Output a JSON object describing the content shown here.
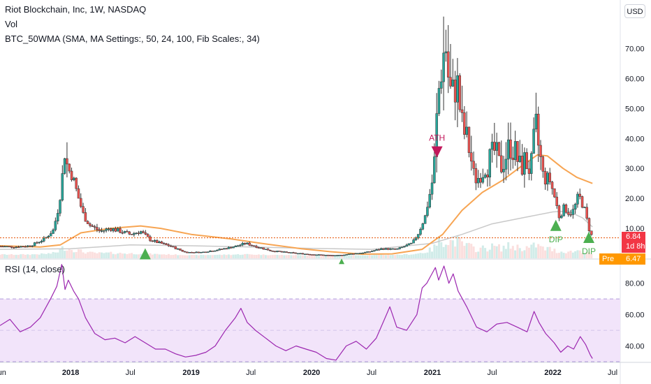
{
  "header": {
    "title": "Riot Blockchain, Inc, 1W, NASDAQ",
    "vol_label": "Vol",
    "indicator_label": "BTC_50WMA (SMA, MA Settings:, 50, 24, 100, Fib Scales:, 34)",
    "rsi_label": "RSI (14, close)",
    "currency_button": "USD"
  },
  "price_tags": {
    "last": "6.84",
    "countdown": "1d 8h",
    "pre_label": "Pre",
    "pre_value": "6.47"
  },
  "colors": {
    "up": "#26a69a",
    "down": "#ef5350",
    "ma_orange": "#f7a553",
    "ma_gray": "#c9c9c9",
    "rsi_line": "#9c27b0",
    "rsi_band": "#f2e4fa",
    "last_price": "#f23645",
    "pre_price": "#ff9800",
    "dotted_line": "#e65100",
    "ath_marker": "#c2185b",
    "dip_marker": "#4caf50"
  },
  "chart_data": [
    {
      "type": "candlestick",
      "ylim": [
        0,
        82
      ],
      "yticks": [
        10,
        20,
        30,
        40,
        50,
        60,
        70
      ],
      "ytick_labels": [
        "10.00",
        "20.00",
        "30.00",
        "40.00",
        "50.00",
        "60.00",
        "70.00"
      ],
      "x_start": "2017-06-01",
      "x_end": "2022-07-20",
      "xtick_labels": [
        {
          "label": "Jun",
          "date": "2017-06-01",
          "bold": false
        },
        {
          "label": "2018",
          "date": "2018-01-01",
          "bold": true
        },
        {
          "label": "Jul",
          "date": "2018-07-01",
          "bold": false
        },
        {
          "label": "2019",
          "date": "2019-01-01",
          "bold": true
        },
        {
          "label": "Jul",
          "date": "2019-07-01",
          "bold": false
        },
        {
          "label": "2020",
          "date": "2020-01-01",
          "bold": true
        },
        {
          "label": "Jul",
          "date": "2020-07-01",
          "bold": false
        },
        {
          "label": "2021",
          "date": "2021-01-01",
          "bold": true
        },
        {
          "label": "Jul",
          "date": "2021-07-01",
          "bold": false
        },
        {
          "label": "2022",
          "date": "2022-01-01",
          "bold": true
        },
        {
          "label": "Jul",
          "date": "2022-07-01",
          "bold": false
        }
      ],
      "close_points": [
        [
          "2017-06-01",
          4.0
        ],
        [
          "2017-07-15",
          3.8
        ],
        [
          "2017-09-01",
          4.2
        ],
        [
          "2017-10-15",
          6.5
        ],
        [
          "2017-11-10",
          9.5
        ],
        [
          "2017-11-25",
          17
        ],
        [
          "2017-12-05",
          25
        ],
        [
          "2017-12-15",
          38
        ],
        [
          "2017-12-22",
          30
        ],
        [
          "2018-01-05",
          28
        ],
        [
          "2018-01-20",
          22
        ],
        [
          "2018-02-10",
          14
        ],
        [
          "2018-03-01",
          11
        ],
        [
          "2018-04-01",
          9
        ],
        [
          "2018-05-01",
          10
        ],
        [
          "2018-06-01",
          9
        ],
        [
          "2018-07-01",
          8
        ],
        [
          "2018-08-01",
          9
        ],
        [
          "2018-09-01",
          6
        ],
        [
          "2018-10-01",
          5
        ],
        [
          "2018-11-01",
          4
        ],
        [
          "2018-12-15",
          2
        ],
        [
          "2019-02-01",
          2
        ],
        [
          "2019-04-01",
          3
        ],
        [
          "2019-05-15",
          4
        ],
        [
          "2019-06-15",
          5
        ],
        [
          "2019-07-15",
          4
        ],
        [
          "2019-09-01",
          2.5
        ],
        [
          "2019-11-01",
          1.8
        ],
        [
          "2020-01-01",
          1.3
        ],
        [
          "2020-03-15",
          0.9
        ],
        [
          "2020-05-01",
          1.5
        ],
        [
          "2020-06-15",
          2.0
        ],
        [
          "2020-08-01",
          3.2
        ],
        [
          "2020-09-15",
          3.0
        ],
        [
          "2020-11-01",
          5.0
        ],
        [
          "2020-11-20",
          8.5
        ],
        [
          "2020-12-10",
          14
        ],
        [
          "2020-12-25",
          22
        ],
        [
          "2021-01-05",
          28
        ],
        [
          "2021-01-15",
          48
        ],
        [
          "2021-01-25",
          62
        ],
        [
          "2021-02-10",
          72
        ],
        [
          "2021-02-20",
          58
        ],
        [
          "2021-03-01",
          53
        ],
        [
          "2021-03-15",
          60
        ],
        [
          "2021-04-01",
          44
        ],
        [
          "2021-04-20",
          38
        ],
        [
          "2021-05-10",
          26
        ],
        [
          "2021-06-01",
          28
        ],
        [
          "2021-06-20",
          32
        ],
        [
          "2021-07-10",
          36
        ],
        [
          "2021-07-25",
          30
        ],
        [
          "2021-08-10",
          34
        ],
        [
          "2021-08-25",
          38
        ],
        [
          "2021-09-10",
          35
        ],
        [
          "2021-09-25",
          30
        ],
        [
          "2021-10-10",
          33
        ],
        [
          "2021-10-25",
          28
        ],
        [
          "2021-11-10",
          44
        ],
        [
          "2021-11-20",
          36
        ],
        [
          "2021-12-05",
          26
        ],
        [
          "2021-12-20",
          27
        ],
        [
          "2022-01-05",
          21
        ],
        [
          "2022-01-20",
          14
        ],
        [
          "2022-02-05",
          17
        ],
        [
          "2022-02-20",
          15
        ],
        [
          "2022-03-05",
          16
        ],
        [
          "2022-03-20",
          21
        ],
        [
          "2022-04-05",
          17
        ],
        [
          "2022-04-20",
          10
        ],
        [
          "2022-05-01",
          6.84
        ]
      ],
      "overlay_orange": [
        [
          "2017-06-01",
          4.2
        ],
        [
          "2017-10-01",
          3.8
        ],
        [
          "2017-12-01",
          4.5
        ],
        [
          "2018-02-01",
          8.5
        ],
        [
          "2018-05-01",
          10.0
        ],
        [
          "2018-08-01",
          10.8
        ],
        [
          "2018-10-01",
          10.0
        ],
        [
          "2019-01-01",
          8.0
        ],
        [
          "2019-05-01",
          6.5
        ],
        [
          "2019-08-01",
          5.0
        ],
        [
          "2019-12-01",
          3.2
        ],
        [
          "2020-03-01",
          2.2
        ],
        [
          "2020-06-01",
          1.4
        ],
        [
          "2020-09-01",
          1.5
        ],
        [
          "2020-12-01",
          3.0
        ],
        [
          "2021-02-01",
          8.0
        ],
        [
          "2021-04-01",
          16.0
        ],
        [
          "2021-06-01",
          22.0
        ],
        [
          "2021-08-01",
          26.0
        ],
        [
          "2021-10-01",
          31.0
        ],
        [
          "2021-11-15",
          34.5
        ],
        [
          "2021-12-15",
          34.2
        ],
        [
          "2022-02-01",
          30.0
        ],
        [
          "2022-03-15",
          27.0
        ],
        [
          "2022-05-01",
          25.0
        ]
      ],
      "overlay_gray": [
        [
          "2017-06-01",
          3.0
        ],
        [
          "2018-01-01",
          3.2
        ],
        [
          "2018-07-01",
          4.5
        ],
        [
          "2019-01-01",
          4.2
        ],
        [
          "2019-07-01",
          3.8
        ],
        [
          "2020-01-01",
          3.3
        ],
        [
          "2020-07-01",
          3.0
        ],
        [
          "2021-01-01",
          5.0
        ],
        [
          "2021-04-01",
          8.0
        ],
        [
          "2021-07-01",
          11.5
        ],
        [
          "2021-10-01",
          13.5
        ],
        [
          "2022-01-01",
          15.5
        ],
        [
          "2022-02-15",
          15.8
        ],
        [
          "2022-04-01",
          13.5
        ],
        [
          "2022-05-01",
          10.5
        ]
      ],
      "last_price": 6.84,
      "annotations": [
        {
          "text": "ATH",
          "date": "2021-01-15",
          "value": 35.5,
          "kind": "arrow-down",
          "color": "#c2185b"
        },
        {
          "text": "",
          "date": "2018-08-15",
          "value": 1.5,
          "kind": "arrow-up",
          "color": "#4caf50"
        },
        {
          "text": "",
          "date": "2020-04-01",
          "value": -1.0,
          "kind": "arrow-up-small",
          "color": "#4caf50"
        },
        {
          "text": "DIP",
          "date": "2022-01-10",
          "value": 11.0,
          "kind": "arrow-up",
          "color": "#4caf50"
        },
        {
          "text": "DIP",
          "date": "2022-04-20",
          "value": 7.0,
          "kind": "arrow-up",
          "color": "#4caf50"
        }
      ]
    },
    {
      "type": "line",
      "name": "RSI",
      "ylim": [
        30,
        95
      ],
      "yticks": [
        40,
        60,
        80
      ],
      "ytick_labels": [
        "40.00",
        "60.00",
        "80.00"
      ],
      "band": [
        30,
        70
      ],
      "points": [
        [
          "2017-06-01",
          53
        ],
        [
          "2017-07-01",
          57
        ],
        [
          "2017-08-01",
          49
        ],
        [
          "2017-09-01",
          52
        ],
        [
          "2017-10-01",
          58
        ],
        [
          "2017-11-01",
          70
        ],
        [
          "2017-11-20",
          78
        ],
        [
          "2017-12-05",
          92
        ],
        [
          "2017-12-15",
          76
        ],
        [
          "2017-12-25",
          82
        ],
        [
          "2018-01-10",
          75
        ],
        [
          "2018-01-25",
          70
        ],
        [
          "2018-02-15",
          58
        ],
        [
          "2018-03-15",
          48
        ],
        [
          "2018-04-15",
          44
        ],
        [
          "2018-05-15",
          45
        ],
        [
          "2018-06-15",
          42
        ],
        [
          "2018-07-15",
          46
        ],
        [
          "2018-08-15",
          42
        ],
        [
          "2018-09-15",
          38
        ],
        [
          "2018-10-15",
          38
        ],
        [
          "2018-11-15",
          35
        ],
        [
          "2018-12-15",
          33
        ],
        [
          "2019-01-15",
          34
        ],
        [
          "2019-02-15",
          36
        ],
        [
          "2019-03-15",
          40
        ],
        [
          "2019-04-15",
          50
        ],
        [
          "2019-05-15",
          58
        ],
        [
          "2019-06-01",
          64
        ],
        [
          "2019-06-20",
          55
        ],
        [
          "2019-07-15",
          50
        ],
        [
          "2019-08-15",
          45
        ],
        [
          "2019-09-15",
          40
        ],
        [
          "2019-10-15",
          37
        ],
        [
          "2019-11-15",
          40
        ],
        [
          "2019-12-15",
          38
        ],
        [
          "2020-01-15",
          36
        ],
        [
          "2020-02-15",
          32
        ],
        [
          "2020-03-15",
          31
        ],
        [
          "2020-04-15",
          40
        ],
        [
          "2020-05-15",
          43
        ],
        [
          "2020-06-15",
          38
        ],
        [
          "2020-07-15",
          45
        ],
        [
          "2020-08-15",
          60
        ],
        [
          "2020-08-25",
          65
        ],
        [
          "2020-09-15",
          52
        ],
        [
          "2020-10-15",
          50
        ],
        [
          "2020-11-15",
          60
        ],
        [
          "2020-12-01",
          77
        ],
        [
          "2020-12-15",
          80
        ],
        [
          "2020-12-28",
          85
        ],
        [
          "2021-01-10",
          90
        ],
        [
          "2021-01-20",
          82
        ],
        [
          "2021-02-05",
          91
        ],
        [
          "2021-02-20",
          80
        ],
        [
          "2021-03-05",
          86
        ],
        [
          "2021-03-20",
          75
        ],
        [
          "2021-04-15",
          65
        ],
        [
          "2021-05-15",
          52
        ],
        [
          "2021-06-15",
          49
        ],
        [
          "2021-07-15",
          54
        ],
        [
          "2021-08-15",
          55
        ],
        [
          "2021-09-15",
          52
        ],
        [
          "2021-10-15",
          49
        ],
        [
          "2021-11-05",
          62
        ],
        [
          "2021-11-20",
          55
        ],
        [
          "2021-12-10",
          48
        ],
        [
          "2022-01-05",
          42
        ],
        [
          "2022-01-25",
          36
        ],
        [
          "2022-02-15",
          40
        ],
        [
          "2022-03-05",
          38
        ],
        [
          "2022-03-25",
          46
        ],
        [
          "2022-04-10",
          41
        ],
        [
          "2022-04-25",
          34
        ],
        [
          "2022-05-01",
          32
        ]
      ]
    }
  ]
}
